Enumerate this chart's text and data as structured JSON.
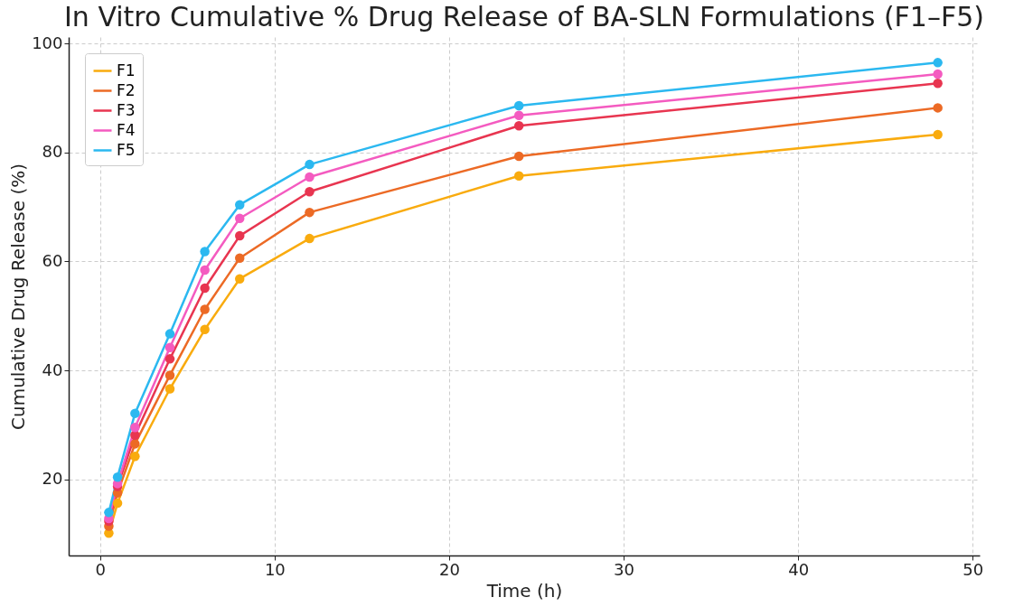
{
  "chart_data": {
    "type": "line",
    "title": "In Vitro Cumulative % Drug Release of BA-SLN Formulations (F1–F5)",
    "xlabel": "Time (h)",
    "ylabel": "Cumulative Drug Release (%)",
    "x": [
      0.5,
      1,
      2,
      4,
      6,
      8,
      12,
      24,
      48
    ],
    "series": [
      {
        "name": "F1",
        "color": "#f9ab0e",
        "values": [
          10.1,
          15.6,
          24.2,
          36.6,
          47.5,
          56.8,
          64.2,
          75.7,
          83.3
        ]
      },
      {
        "name": "F2",
        "color": "#ec6a25",
        "values": [
          11.4,
          17.5,
          26.5,
          39.1,
          51.2,
          60.6,
          69.0,
          79.3,
          88.2
        ]
      },
      {
        "name": "F3",
        "color": "#e83550",
        "values": [
          12.3,
          18.7,
          28.1,
          42.1,
          55.1,
          64.7,
          72.8,
          84.9,
          92.7
        ]
      },
      {
        "name": "F4",
        "color": "#f45bc0",
        "values": [
          12.8,
          19.2,
          29.5,
          44.2,
          58.4,
          67.9,
          75.5,
          86.8,
          94.4
        ]
      },
      {
        "name": "F5",
        "color": "#2bb8f0",
        "values": [
          13.9,
          20.4,
          32.1,
          46.7,
          61.8,
          70.4,
          77.8,
          88.6,
          96.5
        ]
      }
    ],
    "xlim": [
      -1.8,
      50.4
    ],
    "ylim": [
      6,
      101.2
    ],
    "xticks": [
      0,
      10,
      20,
      30,
      40,
      50
    ],
    "yticks": [
      20,
      40,
      60,
      80,
      100
    ],
    "grid": true,
    "legend": "top left",
    "marker": "circle",
    "line_style": "solid"
  }
}
